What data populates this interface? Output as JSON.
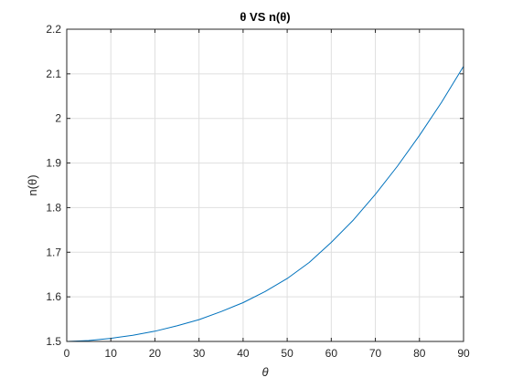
{
  "chart_data": {
    "type": "line",
    "title": "θ VS n(θ)",
    "xlabel": "θ",
    "ylabel": "n(θ)",
    "xlim": [
      0,
      90
    ],
    "ylim": [
      1.5,
      2.2
    ],
    "grid": true,
    "box": true,
    "xticks": [
      0,
      10,
      20,
      30,
      40,
      50,
      60,
      70,
      80,
      90
    ],
    "xtick_labels": [
      "0",
      "10",
      "20",
      "30",
      "40",
      "50",
      "60",
      "70",
      "80",
      "90"
    ],
    "yticks": [
      1.5,
      1.6,
      1.7,
      1.8,
      1.9,
      2.0,
      2.1,
      2.2
    ],
    "ytick_labels": [
      "1.5",
      "1.6",
      "1.7",
      "1.8",
      "1.9",
      "2",
      "2.1",
      "2.2"
    ],
    "series": [
      {
        "color": "#0072BD",
        "x": [
          0,
          5,
          10,
          15,
          20,
          25,
          30,
          35,
          40,
          45,
          50,
          55,
          60,
          65,
          70,
          75,
          80,
          85,
          90
        ],
        "y": [
          1.5,
          1.502,
          1.507,
          1.514,
          1.523,
          1.535,
          1.549,
          1.567,
          1.587,
          1.612,
          1.641,
          1.677,
          1.722,
          1.772,
          1.83,
          1.893,
          1.962,
          2.036,
          2.117
        ]
      }
    ]
  }
}
